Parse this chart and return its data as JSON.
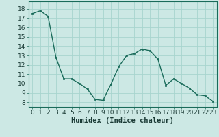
{
  "x": [
    0,
    1,
    2,
    3,
    4,
    5,
    6,
    7,
    8,
    9,
    10,
    11,
    12,
    13,
    14,
    15,
    16,
    17,
    18,
    19,
    20,
    21,
    22,
    23
  ],
  "y": [
    17.5,
    17.8,
    17.2,
    12.8,
    10.5,
    10.5,
    10.0,
    9.4,
    8.3,
    8.2,
    9.9,
    11.8,
    13.0,
    13.2,
    13.7,
    13.5,
    12.6,
    9.8,
    10.5,
    10.0,
    9.5,
    8.8,
    8.7,
    8.1
  ],
  "line_color": "#1a6b5a",
  "marker_color": "#1a6b5a",
  "bg_color": "#cce8e4",
  "grid_color": "#a8d4ce",
  "xlabel": "Humidex (Indice chaleur)",
  "xlabel_fontsize": 7.5,
  "ylabel_ticks": [
    8,
    9,
    10,
    11,
    12,
    13,
    14,
    15,
    16,
    17,
    18
  ],
  "ylim": [
    7.5,
    18.8
  ],
  "xlim": [
    -0.5,
    23.5
  ],
  "xtick_labels": [
    "0",
    "1",
    "2",
    "3",
    "4",
    "5",
    "6",
    "7",
    "8",
    "9",
    "10",
    "11",
    "12",
    "13",
    "14",
    "15",
    "16",
    "17",
    "18",
    "19",
    "20",
    "21",
    "22",
    "23"
  ],
  "tick_fontsize": 6.5
}
